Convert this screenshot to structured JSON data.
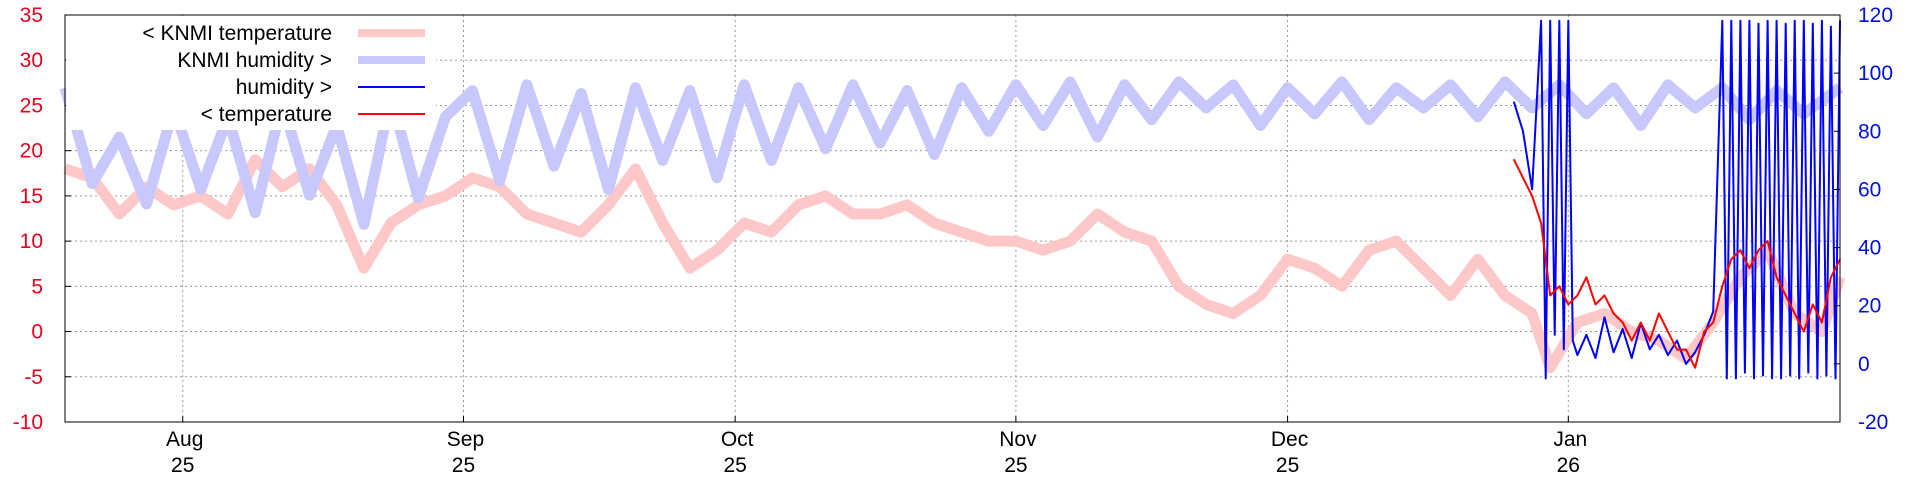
{
  "chart_data": {
    "type": "line",
    "title": "",
    "xlabel": "",
    "ylabel": "",
    "y2label": "",
    "ylim": [
      -10,
      35
    ],
    "y2lim": [
      -20,
      120
    ],
    "y_ticks": [
      -10,
      -5,
      0,
      5,
      10,
      15,
      20,
      25,
      30,
      35
    ],
    "y2_ticks": [
      -20,
      0,
      20,
      40,
      60,
      80,
      100,
      120
    ],
    "x_range": [
      "2025-07-19",
      "2026-01-31"
    ],
    "x_ticks": [
      {
        "date": "2025-08-01",
        "month": "Aug",
        "year": "25"
      },
      {
        "date": "2025-09-01",
        "month": "Sep",
        "year": "25"
      },
      {
        "date": "2025-10-01",
        "month": "Oct",
        "year": "25"
      },
      {
        "date": "2025-11-01",
        "month": "Nov",
        "year": "25"
      },
      {
        "date": "2025-12-01",
        "month": "Dec",
        "year": "25"
      },
      {
        "date": "2026-01-01",
        "month": "Jan",
        "year": "26"
      }
    ],
    "grid": true,
    "legend_position": "top-left",
    "series": [
      {
        "name": "< KNMI temperature",
        "axis": "left",
        "color": "#ffc8c8",
        "points": [
          [
            "2025-07-19",
            18
          ],
          [
            "2025-07-22",
            17
          ],
          [
            "2025-07-25",
            13
          ],
          [
            "2025-07-28",
            16
          ],
          [
            "2025-07-31",
            14
          ],
          [
            "2025-08-03",
            15
          ],
          [
            "2025-08-06",
            13
          ],
          [
            "2025-08-09",
            19
          ],
          [
            "2025-08-12",
            16
          ],
          [
            "2025-08-15",
            18
          ],
          [
            "2025-08-18",
            14
          ],
          [
            "2025-08-21",
            7
          ],
          [
            "2025-08-24",
            12
          ],
          [
            "2025-08-27",
            14
          ],
          [
            "2025-08-30",
            15
          ],
          [
            "2025-09-02",
            17
          ],
          [
            "2025-09-05",
            16
          ],
          [
            "2025-09-08",
            13
          ],
          [
            "2025-09-11",
            12
          ],
          [
            "2025-09-14",
            11
          ],
          [
            "2025-09-17",
            14
          ],
          [
            "2025-09-20",
            18
          ],
          [
            "2025-09-23",
            12
          ],
          [
            "2025-09-26",
            7
          ],
          [
            "2025-09-29",
            9
          ],
          [
            "2025-10-02",
            12
          ],
          [
            "2025-10-05",
            11
          ],
          [
            "2025-10-08",
            14
          ],
          [
            "2025-10-11",
            15
          ],
          [
            "2025-10-14",
            13
          ],
          [
            "2025-10-17",
            13
          ],
          [
            "2025-10-20",
            14
          ],
          [
            "2025-10-23",
            12
          ],
          [
            "2025-10-26",
            11
          ],
          [
            "2025-10-29",
            10
          ],
          [
            "2025-11-01",
            10
          ],
          [
            "2025-11-04",
            9
          ],
          [
            "2025-11-07",
            10
          ],
          [
            "2025-11-10",
            13
          ],
          [
            "2025-11-13",
            11
          ],
          [
            "2025-11-16",
            10
          ],
          [
            "2025-11-19",
            5
          ],
          [
            "2025-11-22",
            3
          ],
          [
            "2025-11-25",
            2
          ],
          [
            "2025-11-28",
            4
          ],
          [
            "2025-12-01",
            8
          ],
          [
            "2025-12-04",
            7
          ],
          [
            "2025-12-07",
            5
          ],
          [
            "2025-12-10",
            9
          ],
          [
            "2025-12-13",
            10
          ],
          [
            "2025-12-16",
            7
          ],
          [
            "2025-12-19",
            4
          ],
          [
            "2025-12-22",
            8
          ],
          [
            "2025-12-25",
            4
          ],
          [
            "2025-12-28",
            2
          ],
          [
            "2025-12-30",
            -4
          ],
          [
            "2026-01-02",
            1
          ],
          [
            "2026-01-05",
            2
          ],
          [
            "2026-01-08",
            0
          ],
          [
            "2026-01-11",
            -1
          ],
          [
            "2026-01-14",
            -3
          ],
          [
            "2026-01-17",
            1
          ],
          [
            "2026-01-20",
            6
          ],
          [
            "2026-01-23",
            9
          ],
          [
            "2026-01-26",
            2
          ],
          [
            "2026-01-29",
            0
          ],
          [
            "2026-01-31",
            6
          ]
        ]
      },
      {
        "name": "KNMI humidity >",
        "axis": "right",
        "color": "#c8c8ff",
        "points": [
          [
            "2025-07-19",
            95
          ],
          [
            "2025-07-22",
            62
          ],
          [
            "2025-07-25",
            78
          ],
          [
            "2025-07-28",
            55
          ],
          [
            "2025-07-31",
            88
          ],
          [
            "2025-08-03",
            60
          ],
          [
            "2025-08-06",
            85
          ],
          [
            "2025-08-09",
            52
          ],
          [
            "2025-08-12",
            90
          ],
          [
            "2025-08-15",
            58
          ],
          [
            "2025-08-18",
            82
          ],
          [
            "2025-08-21",
            48
          ],
          [
            "2025-08-24",
            92
          ],
          [
            "2025-08-27",
            57
          ],
          [
            "2025-08-30",
            85
          ],
          [
            "2025-09-02",
            94
          ],
          [
            "2025-09-05",
            63
          ],
          [
            "2025-09-08",
            96
          ],
          [
            "2025-09-11",
            68
          ],
          [
            "2025-09-14",
            93
          ],
          [
            "2025-09-17",
            60
          ],
          [
            "2025-09-20",
            95
          ],
          [
            "2025-09-23",
            70
          ],
          [
            "2025-09-26",
            94
          ],
          [
            "2025-09-29",
            64
          ],
          [
            "2025-10-02",
            96
          ],
          [
            "2025-10-05",
            70
          ],
          [
            "2025-10-08",
            95
          ],
          [
            "2025-10-11",
            74
          ],
          [
            "2025-10-14",
            96
          ],
          [
            "2025-10-17",
            76
          ],
          [
            "2025-10-20",
            94
          ],
          [
            "2025-10-23",
            72
          ],
          [
            "2025-10-26",
            95
          ],
          [
            "2025-10-29",
            80
          ],
          [
            "2025-11-01",
            96
          ],
          [
            "2025-11-04",
            82
          ],
          [
            "2025-11-07",
            97
          ],
          [
            "2025-11-10",
            78
          ],
          [
            "2025-11-13",
            96
          ],
          [
            "2025-11-16",
            84
          ],
          [
            "2025-11-19",
            97
          ],
          [
            "2025-11-22",
            88
          ],
          [
            "2025-11-25",
            96
          ],
          [
            "2025-11-28",
            82
          ],
          [
            "2025-12-01",
            95
          ],
          [
            "2025-12-04",
            86
          ],
          [
            "2025-12-07",
            97
          ],
          [
            "2025-12-10",
            84
          ],
          [
            "2025-12-13",
            95
          ],
          [
            "2025-12-16",
            88
          ],
          [
            "2025-12-19",
            96
          ],
          [
            "2025-12-22",
            85
          ],
          [
            "2025-12-25",
            97
          ],
          [
            "2025-12-28",
            88
          ],
          [
            "2025-12-31",
            96
          ],
          [
            "2026-01-03",
            86
          ],
          [
            "2026-01-06",
            95
          ],
          [
            "2026-01-09",
            82
          ],
          [
            "2026-01-12",
            96
          ],
          [
            "2026-01-15",
            88
          ],
          [
            "2026-01-18",
            95
          ],
          [
            "2026-01-21",
            84
          ],
          [
            "2026-01-24",
            94
          ],
          [
            "2026-01-27",
            86
          ],
          [
            "2026-01-31",
            95
          ]
        ]
      },
      {
        "name": "humidity >",
        "axis": "right",
        "color": "#0000ff",
        "points": [
          [
            "2025-12-26",
            90
          ],
          [
            "2025-12-27",
            80
          ],
          [
            "2025-12-28",
            60
          ],
          [
            "2025-12-29",
            118
          ],
          [
            "2025-12-29T12",
            -5
          ],
          [
            "2025-12-30",
            118
          ],
          [
            "2025-12-30T12",
            10
          ],
          [
            "2025-12-31",
            118
          ],
          [
            "2025-12-31T12",
            5
          ],
          [
            "2026-01-01",
            118
          ],
          [
            "2026-01-01T12",
            8
          ],
          [
            "2026-01-02",
            3
          ],
          [
            "2026-01-03",
            10
          ],
          [
            "2026-01-04",
            2
          ],
          [
            "2026-01-05",
            16
          ],
          [
            "2026-01-06",
            4
          ],
          [
            "2026-01-07",
            12
          ],
          [
            "2026-01-08",
            2
          ],
          [
            "2026-01-09",
            14
          ],
          [
            "2026-01-10",
            5
          ],
          [
            "2026-01-11",
            10
          ],
          [
            "2026-01-12",
            3
          ],
          [
            "2026-01-13",
            8
          ],
          [
            "2026-01-14",
            0
          ],
          [
            "2026-01-15",
            4
          ],
          [
            "2026-01-16",
            10
          ],
          [
            "2026-01-17",
            18
          ],
          [
            "2026-01-18",
            118
          ],
          [
            "2026-01-18T12",
            -5
          ],
          [
            "2026-01-19",
            118
          ],
          [
            "2026-01-19T12",
            -5
          ],
          [
            "2026-01-20",
            118
          ],
          [
            "2026-01-20T12",
            -3
          ],
          [
            "2026-01-21",
            118
          ],
          [
            "2026-01-21T12",
            -5
          ],
          [
            "2026-01-22",
            117
          ],
          [
            "2026-01-22T12",
            -4
          ],
          [
            "2026-01-23",
            118
          ],
          [
            "2026-01-23T12",
            -5
          ],
          [
            "2026-01-24",
            118
          ],
          [
            "2026-01-24T12",
            -5
          ],
          [
            "2026-01-25",
            117
          ],
          [
            "2026-01-25T12",
            -4
          ],
          [
            "2026-01-26",
            118
          ],
          [
            "2026-01-26T12",
            -5
          ],
          [
            "2026-01-27",
            118
          ],
          [
            "2026-01-27T12",
            -3
          ],
          [
            "2026-01-28",
            117
          ],
          [
            "2026-01-28T12",
            -5
          ],
          [
            "2026-01-29",
            118
          ],
          [
            "2026-01-29T12",
            -4
          ],
          [
            "2026-01-30",
            116
          ],
          [
            "2026-01-30T12",
            -5
          ],
          [
            "2026-01-31",
            118
          ]
        ]
      },
      {
        "name": "< temperature",
        "axis": "left",
        "color": "#ff0000",
        "points": [
          [
            "2025-12-26",
            19
          ],
          [
            "2025-12-27",
            17
          ],
          [
            "2025-12-28",
            15
          ],
          [
            "2025-12-29",
            12
          ],
          [
            "2025-12-30",
            4
          ],
          [
            "2025-12-31",
            5
          ],
          [
            "2026-01-01",
            3
          ],
          [
            "2026-01-02",
            4
          ],
          [
            "2026-01-03",
            6
          ],
          [
            "2026-01-04",
            3
          ],
          [
            "2026-01-05",
            4
          ],
          [
            "2026-01-06",
            2
          ],
          [
            "2026-01-07",
            1
          ],
          [
            "2026-01-08",
            -1
          ],
          [
            "2026-01-09",
            1
          ],
          [
            "2026-01-10",
            -1
          ],
          [
            "2026-01-11",
            2
          ],
          [
            "2026-01-12",
            0
          ],
          [
            "2026-01-13",
            -2
          ],
          [
            "2026-01-14",
            -2
          ],
          [
            "2026-01-15",
            -4
          ],
          [
            "2026-01-16",
            0
          ],
          [
            "2026-01-17",
            1
          ],
          [
            "2026-01-18",
            5
          ],
          [
            "2026-01-19",
            8
          ],
          [
            "2026-01-20",
            9
          ],
          [
            "2026-01-21",
            7
          ],
          [
            "2026-01-22",
            9
          ],
          [
            "2026-01-23",
            10
          ],
          [
            "2026-01-24",
            6
          ],
          [
            "2026-01-25",
            4
          ],
          [
            "2026-01-26",
            2
          ],
          [
            "2026-01-27",
            0
          ],
          [
            "2026-01-28",
            3
          ],
          [
            "2026-01-29",
            1
          ],
          [
            "2026-01-30",
            6
          ],
          [
            "2026-01-31",
            8
          ]
        ]
      }
    ]
  }
}
